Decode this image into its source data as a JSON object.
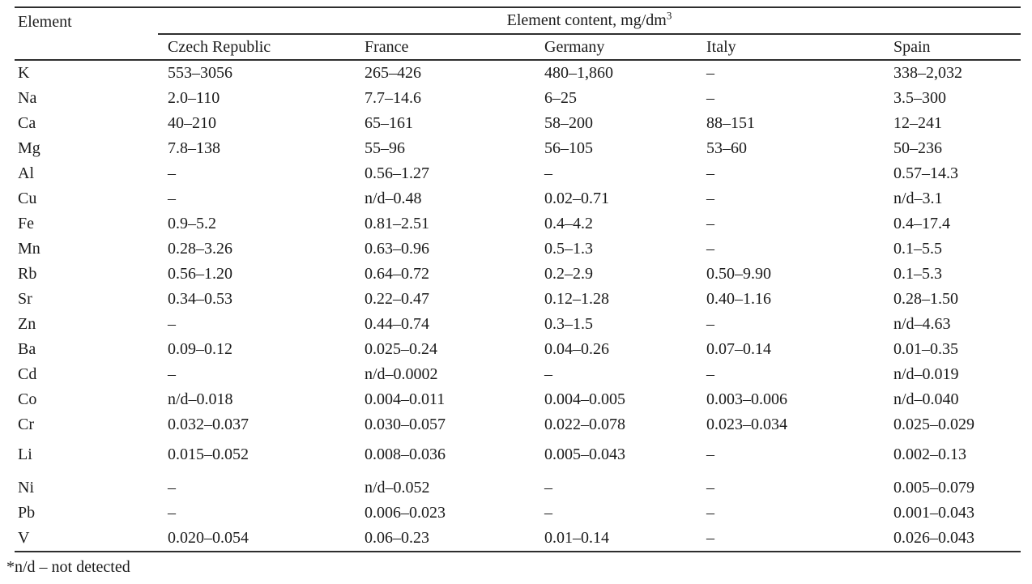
{
  "colors": {
    "background": "#ffffff",
    "text": "#1b1b1b",
    "rule": "#2e2e2e"
  },
  "table": {
    "element_header": "Element",
    "spanner": {
      "text": "Element content, mg/dm",
      "sup": "3"
    },
    "countries": [
      "Czech Republic",
      "France",
      "Germany",
      "Italy",
      "Spain"
    ],
    "rows": [
      {
        "element": "K",
        "values": [
          "553–3056",
          "265–426",
          "480–1,860",
          "–",
          "338–2,032"
        ]
      },
      {
        "element": "Na",
        "values": [
          "2.0–110",
          "7.7–14.6",
          "6–25",
          "–",
          "3.5–300"
        ]
      },
      {
        "element": "Ca",
        "values": [
          "40–210",
          "65–161",
          "58–200",
          "88–151",
          "12–241"
        ]
      },
      {
        "element": "Mg",
        "values": [
          "7.8–138",
          "55–96",
          "56–105",
          "53–60",
          "50–236"
        ]
      },
      {
        "element": "Al",
        "values": [
          "–",
          "0.56–1.27",
          "–",
          "–",
          "0.57–14.3"
        ]
      },
      {
        "element": "Cu",
        "values": [
          "–",
          "n/d–0.48",
          "0.02–0.71",
          "–",
          "n/d–3.1"
        ]
      },
      {
        "element": "Fe",
        "values": [
          "0.9–5.2",
          "0.81–2.51",
          "0.4–4.2",
          "–",
          "0.4–17.4"
        ]
      },
      {
        "element": "Mn",
        "values": [
          "0.28–3.26",
          "0.63–0.96",
          "0.5–1.3",
          "–",
          "0.1–5.5"
        ]
      },
      {
        "element": "Rb",
        "values": [
          "0.56–1.20",
          "0.64–0.72",
          "0.2–2.9",
          "0.50–9.90",
          "0.1–5.3"
        ]
      },
      {
        "element": "Sr",
        "values": [
          "0.34–0.53",
          "0.22–0.47",
          "0.12–1.28",
          "0.40–1.16",
          "0.28–1.50"
        ]
      },
      {
        "element": "Zn",
        "values": [
          "–",
          "0.44–0.74",
          "0.3–1.5",
          "–",
          "n/d–4.63"
        ]
      },
      {
        "element": "Ba",
        "values": [
          "0.09–0.12",
          "0.025–0.24",
          "0.04–0.26",
          "0.07–0.14",
          "0.01–0.35"
        ]
      },
      {
        "element": "Cd",
        "values": [
          "–",
          "n/d–0.0002",
          "–",
          "–",
          "n/d–0.019"
        ]
      },
      {
        "element": "Co",
        "values": [
          "n/d–0.018",
          "0.004–0.011",
          "0.004–0.005",
          "0.003–0.006",
          "n/d–0.040"
        ]
      },
      {
        "element": "Cr",
        "values": [
          "0.032–0.037",
          "0.030–0.057",
          "0.022–0.078",
          "0.023–0.034",
          "0.025–0.029"
        ]
      },
      {
        "element": "Li",
        "values": [
          "0.015–0.052",
          "0.008–0.036",
          "0.005–0.043",
          "–",
          "0.002–0.13"
        ]
      },
      {
        "element": "Ni",
        "values": [
          "–",
          "n/d–0.052",
          "–",
          "–",
          "0.005–0.079"
        ]
      },
      {
        "element": "Pb",
        "values": [
          "–",
          "0.006–0.023",
          "–",
          "–",
          "0.001–0.043"
        ]
      },
      {
        "element": "V",
        "values": [
          "0.020–0.054",
          "0.06–0.23",
          "0.01–0.14",
          "–",
          "0.026–0.043"
        ]
      }
    ],
    "footnote": "*n/d – not detected"
  }
}
